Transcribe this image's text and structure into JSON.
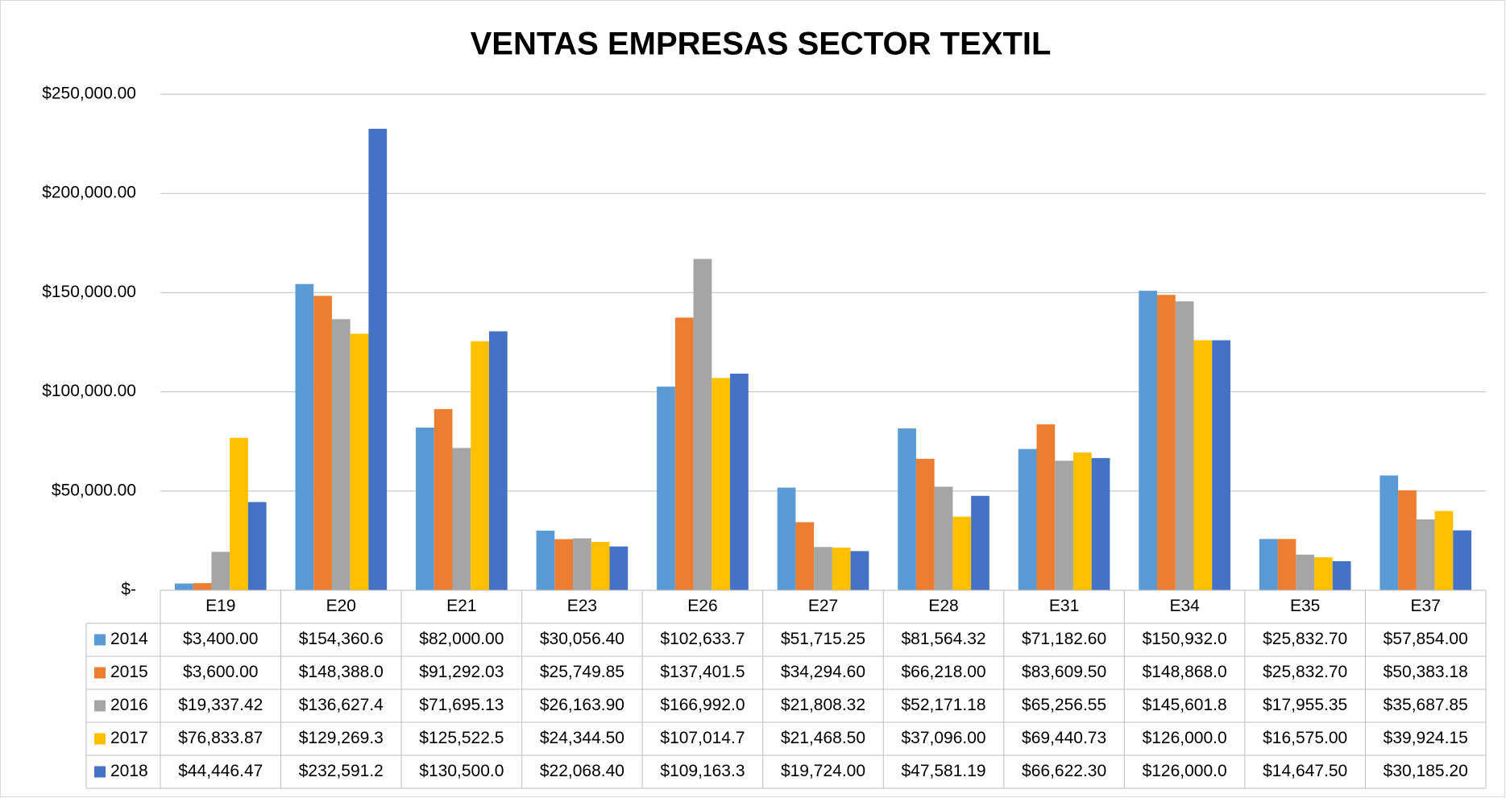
{
  "chart_data": {
    "type": "bar",
    "title": "VENTAS EMPRESAS SECTOR TEXTIL",
    "categories": [
      "E19",
      "E20",
      "E21",
      "E23",
      "E26",
      "E27",
      "E28",
      "E31",
      "E34",
      "E35",
      "E37"
    ],
    "series": [
      {
        "name": "2014",
        "color": "#5b9bd5",
        "values": [
          3400,
          154360.6,
          82000,
          30056.4,
          102633.7,
          51715.25,
          81564.32,
          71182.6,
          150932.0,
          25832.7,
          57854
        ],
        "value_labels": [
          "$3,400.00",
          "$154,360.6",
          "$82,000.00",
          "$30,056.40",
          "$102,633.7",
          "$51,715.25",
          "$81,564.32",
          "$71,182.60",
          "$150,932.0",
          "$25,832.70",
          "$57,854.00"
        ]
      },
      {
        "name": "2015",
        "color": "#ed7d31",
        "values": [
          3600,
          148388.0,
          91292.03,
          25749.85,
          137401.5,
          34294.6,
          66218,
          83609.5,
          148868.0,
          25832.7,
          50383.18
        ],
        "value_labels": [
          "$3,600.00",
          "$148,388.0",
          "$91,292.03",
          "$25,749.85",
          "$137,401.5",
          "$34,294.60",
          "$66,218.00",
          "$83,609.50",
          "$148,868.0",
          "$25,832.70",
          "$50,383.18"
        ]
      },
      {
        "name": "2016",
        "color": "#a5a5a5",
        "values": [
          19337.42,
          136627.4,
          71695.13,
          26163.9,
          166992.0,
          21808.32,
          52171.18,
          65256.55,
          145601.8,
          17955.35,
          35687.85
        ],
        "value_labels": [
          "$19,337.42",
          "$136,627.4",
          "$71,695.13",
          "$26,163.90",
          "$166,992.0",
          "$21,808.32",
          "$52,171.18",
          "$65,256.55",
          "$145,601.8",
          "$17,955.35",
          "$35,687.85"
        ]
      },
      {
        "name": "2017",
        "color": "#ffc000",
        "values": [
          76833.87,
          129269.3,
          125522.5,
          24344.5,
          107014.7,
          21468.5,
          37096,
          69440.73,
          126000.0,
          16575,
          39924.15
        ],
        "value_labels": [
          "$76,833.87",
          "$129,269.3",
          "$125,522.5",
          "$24,344.50",
          "$107,014.7",
          "$21,468.50",
          "$37,096.00",
          "$69,440.73",
          "$126,000.0",
          "$16,575.00",
          "$39,924.15"
        ]
      },
      {
        "name": "2018",
        "color": "#4472c4",
        "values": [
          44446.47,
          232591.2,
          130500.0,
          22068.4,
          109163.3,
          19724,
          47581.19,
          66622.3,
          126000.0,
          14647.5,
          30185.2
        ],
        "value_labels": [
          "$44,446.47",
          "$232,591.2",
          "$130,500.0",
          "$22,068.40",
          "$109,163.3",
          "$19,724.00",
          "$47,581.19",
          "$66,622.30",
          "$126,000.0",
          "$14,647.50",
          "$30,185.20"
        ]
      }
    ],
    "ylim": [
      0,
      250000
    ],
    "yticks": [
      {
        "value": 0,
        "label": "$-"
      },
      {
        "value": 50000,
        "label": "$50,000.00"
      },
      {
        "value": 100000,
        "label": "$100,000.00"
      },
      {
        "value": 150000,
        "label": "$150,000.00"
      },
      {
        "value": 200000,
        "label": "$200,000.00"
      },
      {
        "value": 250000,
        "label": "$250,000.00"
      }
    ],
    "grid": true
  }
}
